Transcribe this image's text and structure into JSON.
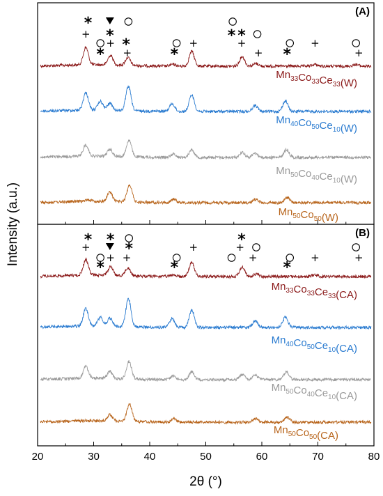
{
  "chart_data": {
    "type": "line",
    "xlabel": "2θ (°)",
    "ylabel": "Intensity (a.u.)",
    "xlim": [
      20,
      80
    ],
    "xticks": [
      20,
      30,
      40,
      50,
      60,
      70,
      80
    ],
    "tick_labels": [
      "20",
      "30",
      "40",
      "50",
      "60",
      "70",
      "80"
    ],
    "legend": {
      "circle": "○",
      "star": "*",
      "triangle": "▼",
      "plus": "+"
    },
    "panels": [
      {
        "label": "(A)",
        "series": [
          {
            "parts": [
              [
                "Mn",
                "33"
              ],
              [
                "Co",
                "33"
              ],
              [
                "Ce",
                "33"
              ]
            ],
            "suffix": "(W)",
            "color": "#8b1a1a",
            "peaks": [
              [
                28.6,
                1.0
              ],
              [
                33.0,
                0.55
              ],
              [
                36.1,
                0.45
              ],
              [
                44.2,
                0.1
              ],
              [
                47.5,
                0.85
              ],
              [
                56.5,
                0.55
              ],
              [
                59.0,
                0.15
              ],
              [
                69.5,
                0.1
              ],
              [
                76.8,
                0.1
              ]
            ]
          },
          {
            "parts": [
              [
                "Mn",
                "40"
              ],
              [
                "Co",
                "50"
              ],
              [
                "Ce",
                "10"
              ]
            ],
            "suffix": "(W)",
            "color": "#2a7bd0",
            "peaks": [
              [
                28.6,
                1.0
              ],
              [
                31.2,
                0.5
              ],
              [
                32.9,
                0.4
              ],
              [
                36.2,
                1.4
              ],
              [
                44.0,
                0.45
              ],
              [
                47.5,
                0.95
              ],
              [
                58.8,
                0.35
              ],
              [
                64.2,
                0.6
              ]
            ]
          },
          {
            "parts": [
              [
                "Mn",
                "50"
              ],
              [
                "Co",
                "40"
              ],
              [
                "Ce",
                "10"
              ]
            ],
            "suffix": "(W)",
            "color": "#9a9a9a",
            "peaks": [
              [
                28.6,
                0.65
              ],
              [
                32.9,
                0.4
              ],
              [
                36.3,
                0.95
              ],
              [
                44.2,
                0.2
              ],
              [
                47.5,
                0.45
              ],
              [
                56.5,
                0.3
              ],
              [
                58.8,
                0.25
              ],
              [
                64.4,
                0.45
              ]
            ]
          },
          {
            "parts": [
              [
                "Mn",
                "50"
              ],
              [
                "Co",
                "50"
              ]
            ],
            "suffix": "(W)",
            "color": "#b8651c",
            "peaks": [
              [
                29.0,
                0.1
              ],
              [
                32.9,
                0.55
              ],
              [
                36.4,
                1.0
              ],
              [
                44.3,
                0.2
              ],
              [
                58.9,
                0.2
              ],
              [
                64.5,
                0.3
              ]
            ]
          }
        ],
        "markers": [
          {
            "symbol": "star",
            "x": 29.0,
            "row": 0
          },
          {
            "symbol": "plus",
            "x": 28.6,
            "row": 1
          },
          {
            "symbol": "triangle",
            "x": 32.9,
            "row": 0
          },
          {
            "symbol": "star",
            "x": 32.9,
            "row": 1
          },
          {
            "symbol": "plus",
            "x": 33.0,
            "row": 2
          },
          {
            "symbol": "circle",
            "x": 31.2,
            "row": 2
          },
          {
            "symbol": "star",
            "x": 31.2,
            "row": 3
          },
          {
            "symbol": "circle",
            "x": 36.2,
            "row": 0
          },
          {
            "symbol": "star",
            "x": 35.8,
            "row": 2
          },
          {
            "symbol": "plus",
            "x": 36.0,
            "row": 3
          },
          {
            "symbol": "circle",
            "x": 44.8,
            "row": 2
          },
          {
            "symbol": "star",
            "x": 44.4,
            "row": 3
          },
          {
            "symbol": "plus",
            "x": 47.8,
            "row": 2
          },
          {
            "symbol": "circle",
            "x": 54.8,
            "row": 0
          },
          {
            "symbol": "star",
            "x": 54.6,
            "row": 1
          },
          {
            "symbol": "star",
            "x": 56.4,
            "row": 1
          },
          {
            "symbol": "plus",
            "x": 56.4,
            "row": 2
          },
          {
            "symbol": "circle",
            "x": 59.2,
            "row": 1
          },
          {
            "symbol": "plus",
            "x": 59.4,
            "row": 3
          },
          {
            "symbol": "circle",
            "x": 65.0,
            "row": 2
          },
          {
            "symbol": "star",
            "x": 64.5,
            "row": 3
          },
          {
            "symbol": "plus",
            "x": 69.5,
            "row": 2
          },
          {
            "symbol": "circle",
            "x": 76.8,
            "row": 2
          },
          {
            "symbol": "plus",
            "x": 77.3,
            "row": 3
          }
        ]
      },
      {
        "label": "(B)",
        "series": [
          {
            "parts": [
              [
                "Mn",
                "33"
              ],
              [
                "Co",
                "33"
              ],
              [
                "Ce",
                "33"
              ]
            ],
            "suffix": "(CA)",
            "color": "#8b1a1a",
            "peaks": [
              [
                28.6,
                0.9
              ],
              [
                33.0,
                0.5
              ],
              [
                36.1,
                0.45
              ],
              [
                44.2,
                0.1
              ],
              [
                47.5,
                0.8
              ],
              [
                56.5,
                0.55
              ],
              [
                59.0,
                0.15
              ],
              [
                69.5,
                0.1
              ]
            ]
          },
          {
            "parts": [
              [
                "Mn",
                "40"
              ],
              [
                "Co",
                "50"
              ],
              [
                "Ce",
                "10"
              ]
            ],
            "suffix": "(CA)",
            "color": "#2a7bd0",
            "peaks": [
              [
                28.6,
                1.0
              ],
              [
                31.2,
                0.5
              ],
              [
                32.9,
                0.45
              ],
              [
                36.2,
                1.6
              ],
              [
                44.0,
                0.5
              ],
              [
                47.5,
                1.0
              ],
              [
                58.8,
                0.35
              ],
              [
                64.2,
                0.6
              ]
            ]
          },
          {
            "parts": [
              [
                "Mn",
                "50"
              ],
              [
                "Co",
                "40"
              ],
              [
                "Ce",
                "10"
              ]
            ],
            "suffix": "(CA)",
            "color": "#9a9a9a",
            "peaks": [
              [
                28.6,
                0.7
              ],
              [
                32.9,
                0.4
              ],
              [
                36.3,
                1.0
              ],
              [
                44.2,
                0.2
              ],
              [
                47.5,
                0.45
              ],
              [
                56.5,
                0.3
              ],
              [
                58.8,
                0.25
              ],
              [
                64.4,
                0.45
              ]
            ]
          },
          {
            "parts": [
              [
                "Mn",
                "50"
              ],
              [
                "Co",
                "50"
              ]
            ],
            "suffix": "(CA)",
            "color": "#b8651c",
            "peaks": [
              [
                32.9,
                0.35
              ],
              [
                36.4,
                1.0
              ],
              [
                44.3,
                0.2
              ],
              [
                58.9,
                0.2
              ],
              [
                64.5,
                0.3
              ]
            ]
          }
        ],
        "markers": [
          {
            "symbol": "star",
            "x": 29.0,
            "row": 0
          },
          {
            "symbol": "plus",
            "x": 28.6,
            "row": 1
          },
          {
            "symbol": "star",
            "x": 33.0,
            "row": 0
          },
          {
            "symbol": "triangle",
            "x": 32.9,
            "row": 1
          },
          {
            "symbol": "plus",
            "x": 33.0,
            "row": 2
          },
          {
            "symbol": "circle",
            "x": 31.2,
            "row": 2
          },
          {
            "symbol": "star",
            "x": 31.2,
            "row": 3
          },
          {
            "symbol": "circle",
            "x": 36.3,
            "row": 0
          },
          {
            "symbol": "star",
            "x": 36.3,
            "row": 1
          },
          {
            "symbol": "plus",
            "x": 35.9,
            "row": 2
          },
          {
            "symbol": "circle",
            "x": 44.8,
            "row": 2
          },
          {
            "symbol": "star",
            "x": 44.4,
            "row": 3
          },
          {
            "symbol": "plus",
            "x": 47.8,
            "row": 1
          },
          {
            "symbol": "star",
            "x": 56.4,
            "row": 0
          },
          {
            "symbol": "plus",
            "x": 56.1,
            "row": 1
          },
          {
            "symbol": "circle",
            "x": 54.6,
            "row": 2
          },
          {
            "symbol": "circle",
            "x": 59.0,
            "row": 1
          },
          {
            "symbol": "plus",
            "x": 58.4,
            "row": 2
          },
          {
            "symbol": "circle",
            "x": 65.0,
            "row": 2
          },
          {
            "symbol": "star",
            "x": 64.5,
            "row": 3
          },
          {
            "symbol": "plus",
            "x": 69.5,
            "row": 2
          },
          {
            "symbol": "circle",
            "x": 76.8,
            "row": 1
          },
          {
            "symbol": "plus",
            "x": 77.3,
            "row": 2
          }
        ]
      }
    ]
  }
}
